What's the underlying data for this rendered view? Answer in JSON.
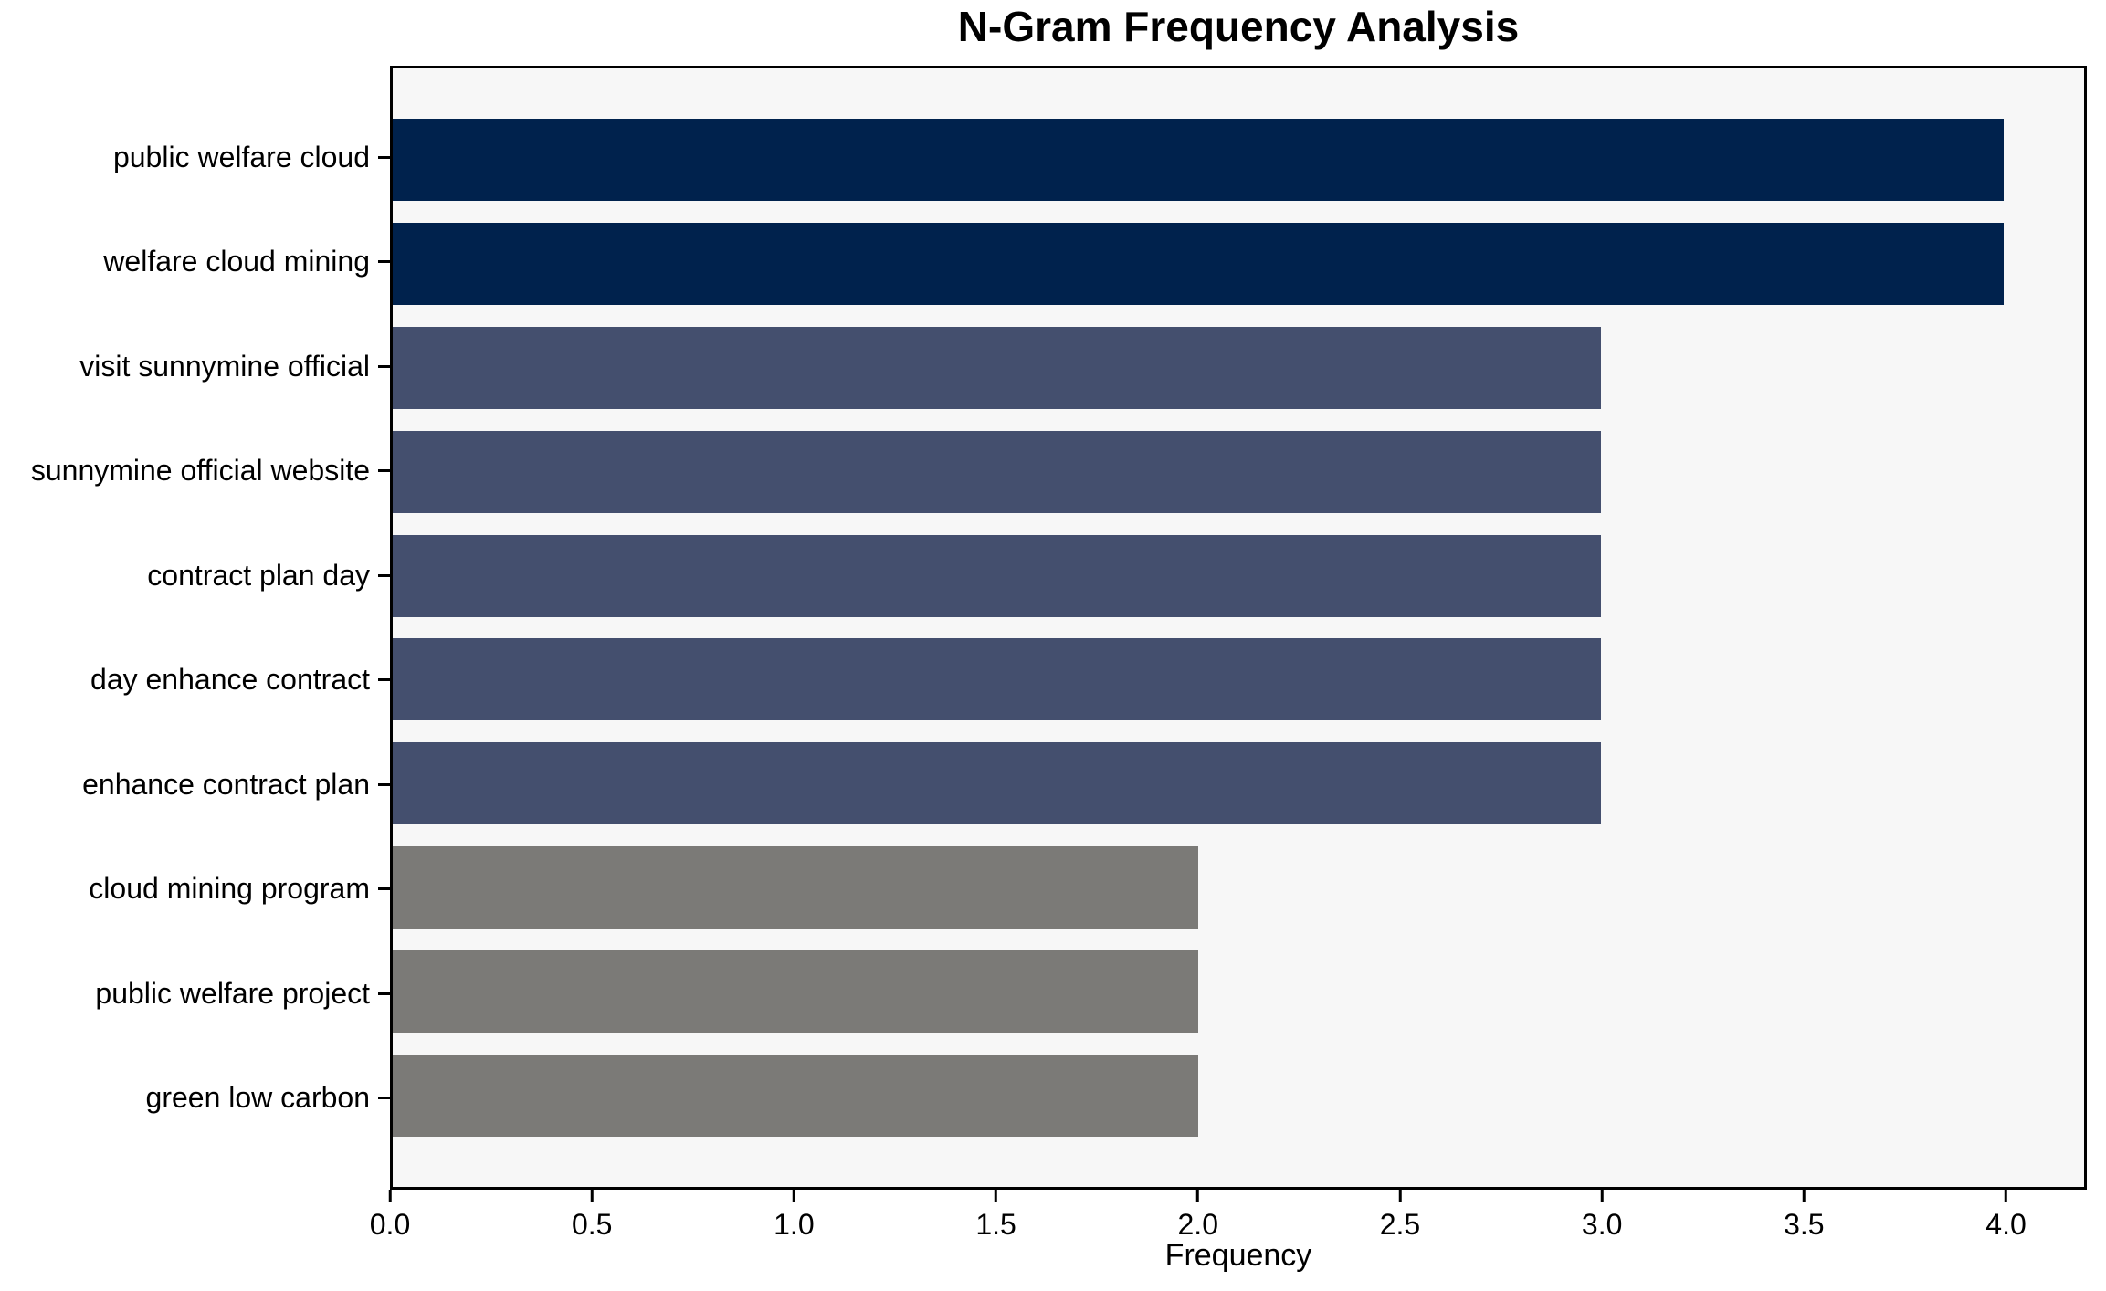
{
  "chart": {
    "title": "N-Gram Frequency Analysis",
    "xlabel": "Frequency"
  },
  "chart_data": {
    "type": "bar",
    "orientation": "horizontal",
    "title": "N-Gram Frequency Analysis",
    "xlabel": "Frequency",
    "ylabel": "",
    "categories": [
      "public welfare cloud",
      "welfare cloud mining",
      "visit sunnymine official",
      "sunnymine official website",
      "contract plan day",
      "day enhance contract",
      "enhance contract plan",
      "cloud mining program",
      "public welfare project",
      "green low carbon"
    ],
    "values": [
      4,
      4,
      3,
      3,
      3,
      3,
      3,
      2,
      2,
      2
    ],
    "bar_colors": [
      "#00224d",
      "#00224d",
      "#444f6e",
      "#444f6e",
      "#444f6e",
      "#444f6e",
      "#444f6e",
      "#7b7a77",
      "#7b7a77",
      "#7b7a77"
    ],
    "xlim": [
      0,
      4.2
    ],
    "x_ticks": [
      "0.0",
      "0.5",
      "1.0",
      "1.5",
      "2.0",
      "2.5",
      "3.0",
      "3.5",
      "4.0"
    ],
    "x_tick_values": [
      0,
      0.5,
      1,
      1.5,
      2,
      2.5,
      3,
      3.5,
      4
    ],
    "grid": false,
    "legend_position": "none",
    "plot_background": "#f7f7f7",
    "spine_color": "#000000"
  }
}
